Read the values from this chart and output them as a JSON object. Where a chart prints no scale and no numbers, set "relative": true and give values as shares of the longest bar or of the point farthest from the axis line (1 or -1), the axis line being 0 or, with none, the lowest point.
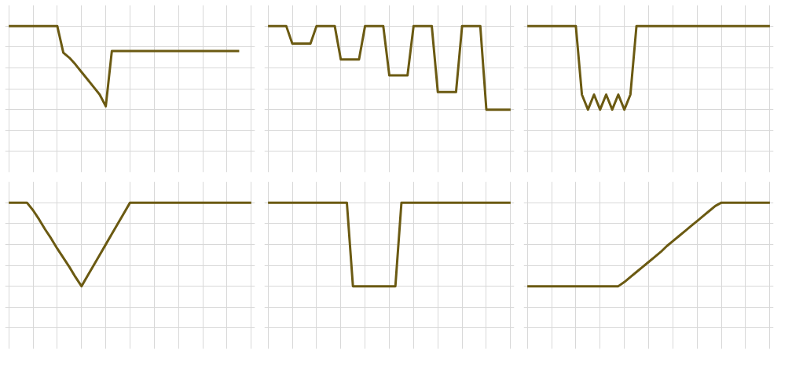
{
  "chart_data": [
    {
      "type": "line",
      "relative": true,
      "grid": true,
      "tick_labels": false,
      "categories": [
        null,
        null,
        null,
        null,
        null,
        null,
        null,
        null,
        null,
        null,
        null,
        null,
        null,
        null,
        null,
        null,
        null,
        null,
        null,
        null,
        null,
        null,
        null,
        null,
        null,
        null,
        null,
        null,
        null,
        null,
        null,
        null,
        null,
        null,
        null,
        null,
        null,
        null,
        null,
        null,
        null
      ],
      "series": [
        {
          "color": "#6b5a12",
          "values": [
            1,
            1,
            1,
            1,
            1,
            1,
            1,
            1,
            1,
            0.68,
            0.62,
            0.54,
            0.45,
            0.36,
            0.27,
            0.18,
            0.04,
            0.7,
            0.7,
            0.7,
            0.7,
            0.7,
            0.7,
            0.7,
            0.7,
            0.7,
            0.7,
            0.7,
            0.7,
            0.7,
            0.7,
            0.7,
            0.7,
            0.7,
            0.7,
            0.7,
            0.7,
            0.7,
            0.7,
            null,
            null
          ]
        }
      ]
    },
    {
      "type": "line",
      "relative": true,
      "grid": true,
      "tick_labels": false,
      "categories": [
        null,
        null,
        null,
        null,
        null,
        null,
        null,
        null,
        null,
        null,
        null,
        null,
        null,
        null,
        null,
        null,
        null,
        null,
        null,
        null,
        null,
        null,
        null,
        null,
        null,
        null,
        null,
        null,
        null,
        null,
        null,
        null,
        null,
        null,
        null,
        null,
        null,
        null,
        null,
        null,
        null
      ],
      "series": [
        {
          "color": "#6b5a12",
          "values": [
            1,
            1,
            1,
            1,
            0.79,
            0.79,
            0.79,
            0.79,
            1,
            1,
            1,
            1,
            0.6,
            0.6,
            0.6,
            0.6,
            1,
            1,
            1,
            1,
            0.41,
            0.41,
            0.41,
            0.41,
            1,
            1,
            1,
            1,
            0.21,
            0.21,
            0.21,
            0.21,
            1,
            1,
            1,
            1,
            0,
            0,
            0,
            0,
            0
          ]
        }
      ]
    },
    {
      "type": "line",
      "relative": true,
      "grid": true,
      "tick_labels": false,
      "categories": [
        null,
        null,
        null,
        null,
        null,
        null,
        null,
        null,
        null,
        null,
        null,
        null,
        null,
        null,
        null,
        null,
        null,
        null,
        null,
        null,
        null,
        null,
        null,
        null,
        null,
        null,
        null,
        null,
        null,
        null,
        null,
        null,
        null,
        null,
        null,
        null,
        null,
        null,
        null,
        null,
        null
      ],
      "series": [
        {
          "color": "#6b5a12",
          "values": [
            1,
            1,
            1,
            1,
            1,
            1,
            1,
            1,
            1,
            0.18,
            0,
            0.18,
            0,
            0.18,
            0,
            0.18,
            0,
            0.18,
            1,
            1,
            1,
            1,
            1,
            1,
            1,
            1,
            1,
            1,
            1,
            1,
            1,
            1,
            1,
            1,
            1,
            1,
            1,
            1,
            1,
            1,
            1
          ]
        }
      ]
    },
    {
      "type": "line",
      "relative": true,
      "grid": true,
      "tick_labels": false,
      "categories": [
        null,
        null,
        null,
        null,
        null,
        null,
        null,
        null,
        null,
        null,
        null,
        null,
        null,
        null,
        null,
        null,
        null,
        null,
        null,
        null,
        null,
        null,
        null,
        null,
        null,
        null,
        null,
        null,
        null,
        null,
        null,
        null,
        null,
        null,
        null,
        null,
        null,
        null,
        null,
        null,
        null
      ],
      "series": [
        {
          "color": "#6b5a12",
          "values": [
            1,
            1,
            1,
            1,
            0.91,
            0.8,
            0.68,
            0.57,
            0.45,
            0.34,
            0.23,
            0.11,
            0,
            0.125,
            0.25,
            0.375,
            0.5,
            0.625,
            0.75,
            0.875,
            1,
            1,
            1,
            1,
            1,
            1,
            1,
            1,
            1,
            1,
            1,
            1,
            1,
            1,
            1,
            1,
            1,
            1,
            1,
            1,
            1
          ]
        }
      ]
    },
    {
      "type": "line",
      "relative": true,
      "grid": true,
      "tick_labels": false,
      "categories": [
        null,
        null,
        null,
        null,
        null,
        null,
        null,
        null,
        null,
        null,
        null,
        null,
        null,
        null,
        null,
        null,
        null,
        null,
        null,
        null,
        null,
        null,
        null,
        null,
        null,
        null,
        null,
        null,
        null,
        null,
        null,
        null,
        null,
        null,
        null,
        null,
        null,
        null,
        null,
        null,
        null
      ],
      "series": [
        {
          "color": "#6b5a12",
          "values": [
            1,
            1,
            1,
            1,
            1,
            1,
            1,
            1,
            1,
            1,
            1,
            1,
            1,
            1,
            0,
            0,
            0,
            0,
            0,
            0,
            0,
            0,
            1,
            1,
            1,
            1,
            1,
            1,
            1,
            1,
            1,
            1,
            1,
            1,
            1,
            1,
            1,
            1,
            1,
            1,
            1
          ]
        }
      ]
    },
    {
      "type": "line",
      "relative": true,
      "grid": true,
      "tick_labels": false,
      "categories": [
        null,
        null,
        null,
        null,
        null,
        null,
        null,
        null,
        null,
        null,
        null,
        null,
        null,
        null,
        null,
        null,
        null,
        null,
        null,
        null,
        null,
        null,
        null,
        null,
        null,
        null,
        null,
        null,
        null,
        null,
        null,
        null,
        null,
        null,
        null,
        null,
        null,
        null,
        null,
        null,
        null
      ],
      "series": [
        {
          "color": "#6b5a12",
          "values": [
            0,
            0,
            0,
            0,
            0,
            0,
            0,
            0,
            0,
            0,
            0,
            0,
            0,
            0,
            0,
            0,
            0.05,
            0.11,
            0.17,
            0.23,
            0.29,
            0.35,
            0.41,
            0.48,
            0.54,
            0.6,
            0.66,
            0.72,
            0.78,
            0.84,
            0.9,
            0.96,
            1,
            1,
            1,
            1,
            1,
            1,
            1,
            1,
            1
          ]
        }
      ]
    }
  ]
}
